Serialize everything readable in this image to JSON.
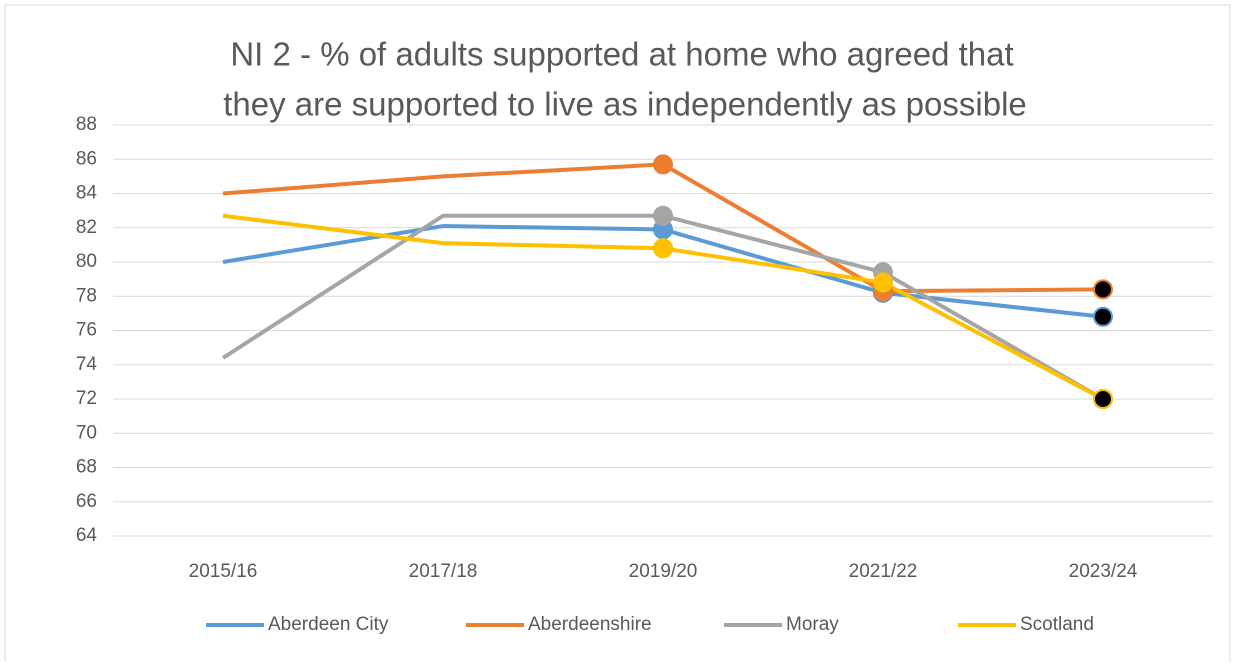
{
  "chart_data": {
    "type": "line",
    "title": [
      "NI 2 - % of adults supported at home who agreed that",
      "they are supported to live as independently as possible"
    ],
    "categories": [
      "2015/16",
      "2017/18",
      "2019/20",
      "2021/22",
      "2023/24"
    ],
    "series": [
      {
        "name": "Aberdeen City",
        "color": "#5b9bd5",
        "values": [
          80,
          82.1,
          81.9,
          78.2,
          76.8
        ]
      },
      {
        "name": "Aberdeenshire",
        "color": "#ed7d31",
        "values": [
          84,
          85,
          85.7,
          78.3,
          78.4
        ]
      },
      {
        "name": "Moray",
        "color": "#a5a5a5",
        "values": [
          74.4,
          82.7,
          82.7,
          79.4,
          72
        ]
      },
      {
        "name": "Scotland",
        "color": "#ffc000",
        "values": [
          82.7,
          81.1,
          80.8,
          78.8,
          72
        ]
      }
    ],
    "marker_categories": [
      2,
      3,
      4
    ],
    "last_marker_color": "#000000",
    "ylim": [
      64,
      88
    ],
    "yticks": [
      64,
      66,
      68,
      70,
      72,
      74,
      76,
      78,
      80,
      82,
      84,
      86,
      88
    ],
    "grid": true,
    "legend": "bottom"
  }
}
